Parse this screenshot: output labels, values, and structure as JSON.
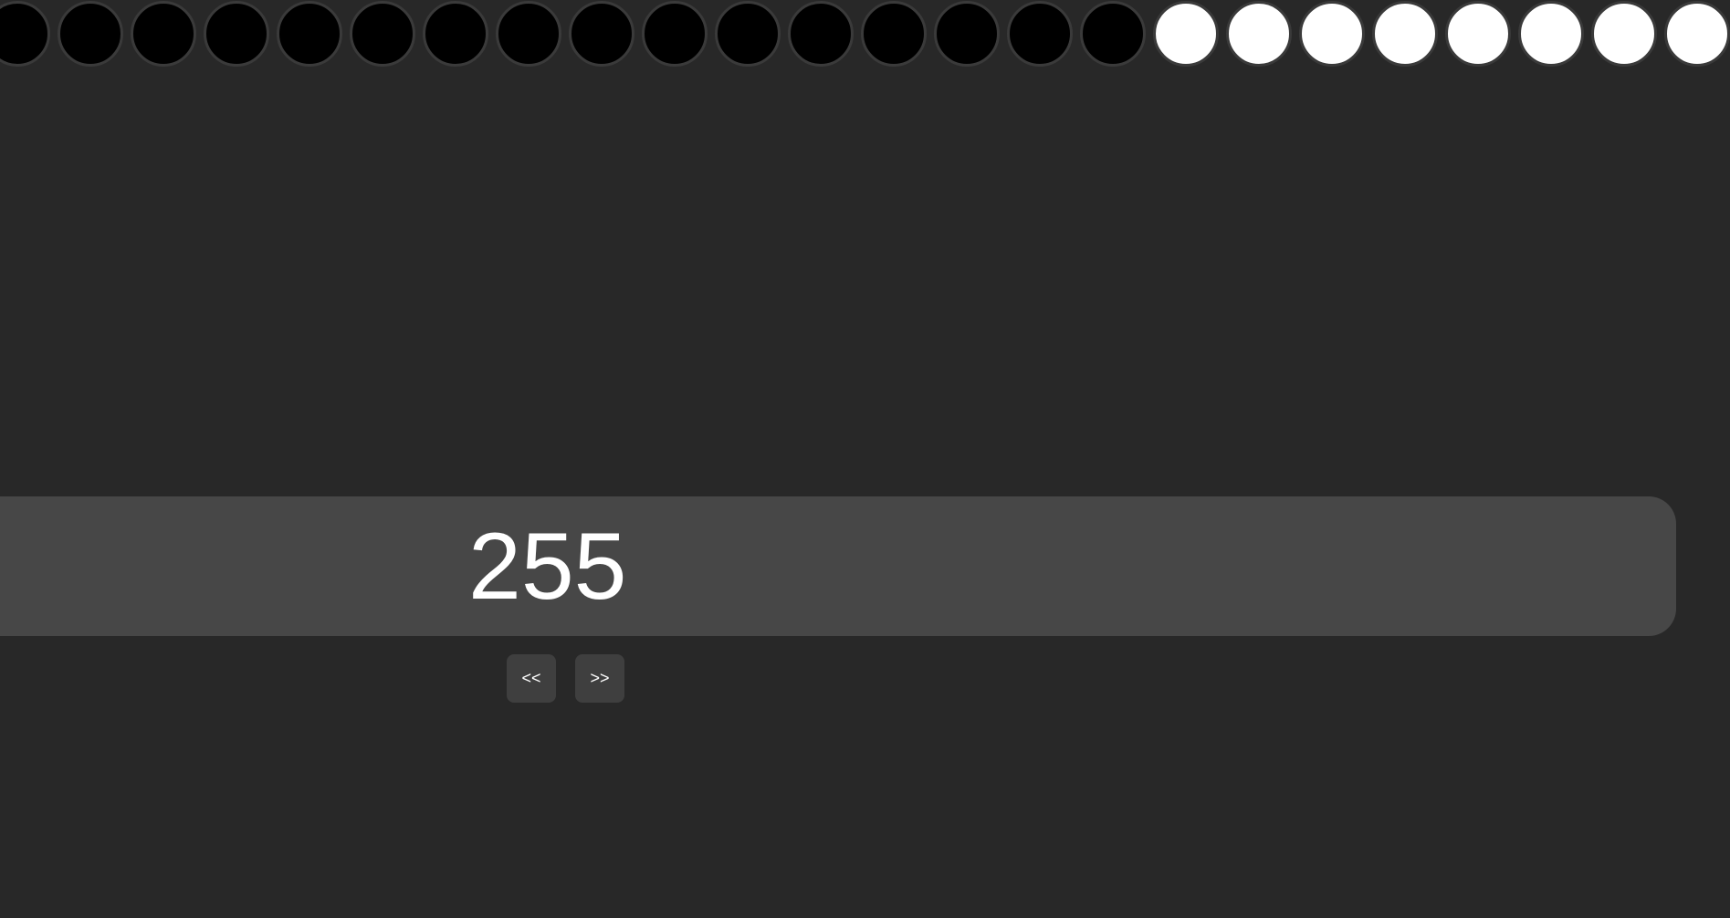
{
  "display": {
    "value": "255"
  },
  "navigation": {
    "prev_label": "<<",
    "next_label": ">>"
  },
  "bits": {
    "states": [
      0,
      0,
      0,
      0,
      0,
      0,
      0,
      0,
      0,
      0,
      0,
      0,
      0,
      0,
      0,
      0,
      1,
      1,
      1,
      1,
      1,
      1,
      1,
      1
    ],
    "on_color": "#ffffff",
    "off_color": "#000000"
  },
  "colors": {
    "background": "#282828",
    "display_bar": "#474747",
    "button": "#3f3f3f",
    "text": "#ffffff"
  }
}
